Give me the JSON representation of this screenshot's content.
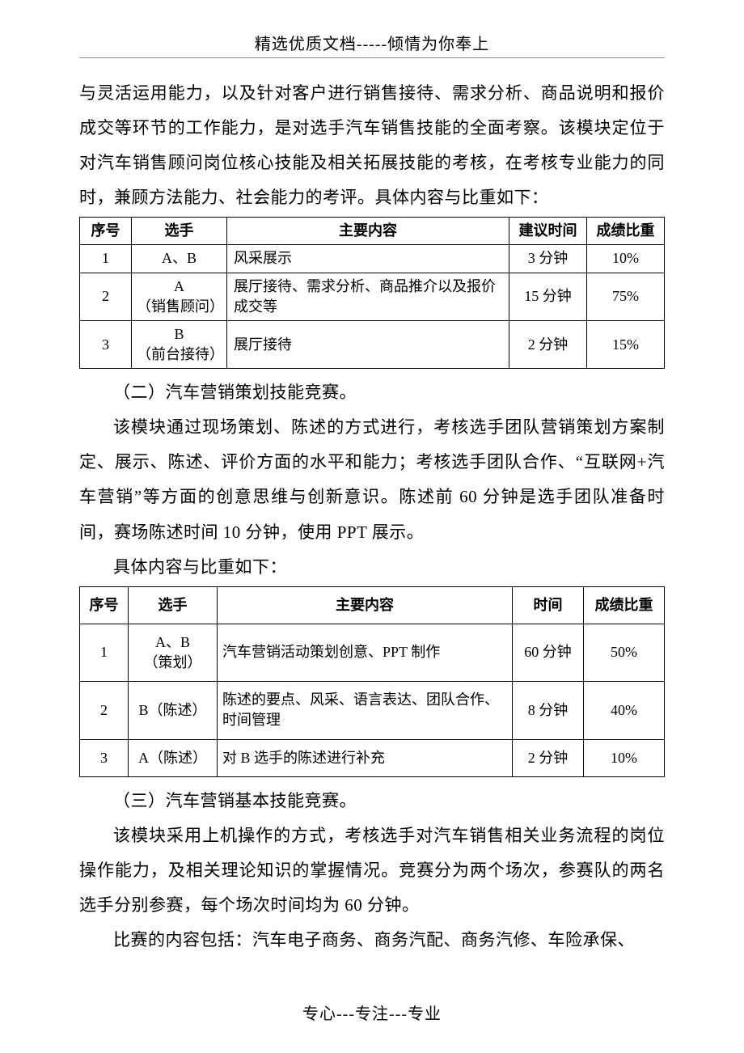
{
  "header": "精选优质文档-----倾情为你奉上",
  "footer": "专心---专注---专业",
  "para1": "与灵活运用能力，以及针对客户进行销售接待、需求分析、商品说明和报价成交等环节的工作能力，是对选手汽车销售技能的全面考察。该模块定位于对汽车销售顾问岗位核心技能及相关拓展技能的考核，在考核专业能力的同时，兼顾方法能力、社会能力的考评。具体内容与比重如下：",
  "table1": {
    "headers": {
      "c1": "序号",
      "c2": "选手",
      "c3": "主要内容",
      "c4": "建议时间",
      "c5": "成绩比重"
    },
    "rows": [
      {
        "c1": "1",
        "c2": "A、B",
        "c3": "风采展示",
        "c4": "3 分钟",
        "c5": "10%"
      },
      {
        "c1": "2",
        "c2": "A\n（销售顾问）",
        "c3": "展厅接待、需求分析、商品推介以及报价成交等",
        "c4": "15 分钟",
        "c5": "75%"
      },
      {
        "c1": "3",
        "c2": "B\n（前台接待）",
        "c3": "展厅接待",
        "c4": "2 分钟",
        "c5": "15%"
      }
    ]
  },
  "para2_title": "（二）汽车营销策划技能竞赛。",
  "para2_body": "该模块通过现场策划、陈述的方式进行，考核选手团队营销策划方案制定、展示、陈述、评价方面的水平和能力；考核选手团队合作、“互联网+汽车营销”等方面的创意思维与创新意识。陈述前 60 分钟是选手团队准备时间，赛场陈述时间 10 分钟，使用 PPT 展示。",
  "para2_lead": "具体内容与比重如下：",
  "table2": {
    "headers": {
      "c1": "序号",
      "c2": "选手",
      "c3": "主要内容",
      "c4": "时间",
      "c5": "成绩比重"
    },
    "rows": [
      {
        "c1": "1",
        "c2": "A、B\n（策划）",
        "c3": "汽车营销活动策划创意、PPT 制作",
        "c4": "60 分钟",
        "c5": "50%"
      },
      {
        "c1": "2",
        "c2": "B（陈述）",
        "c3": "陈述的要点、风采、语言表达、团队合作、时间管理",
        "c4": "8 分钟",
        "c5": "40%"
      },
      {
        "c1": "3",
        "c2": "A（陈述）",
        "c3": "对 B 选手的陈述进行补充",
        "c4": "2 分钟",
        "c5": "10%"
      }
    ]
  },
  "para3_title": "（三）汽车营销基本技能竞赛。",
  "para3_body": "该模块采用上机操作的方式，考核选手对汽车销售相关业务流程的岗位操作能力，及相关理论知识的掌握情况。竞赛分为两个场次，参赛队的两名选手分别参赛，每个场次时间均为 60 分钟。",
  "para3_lead": "比赛的内容包括：汽车电子商务、商务汽配、商务汽修、车险承保、"
}
